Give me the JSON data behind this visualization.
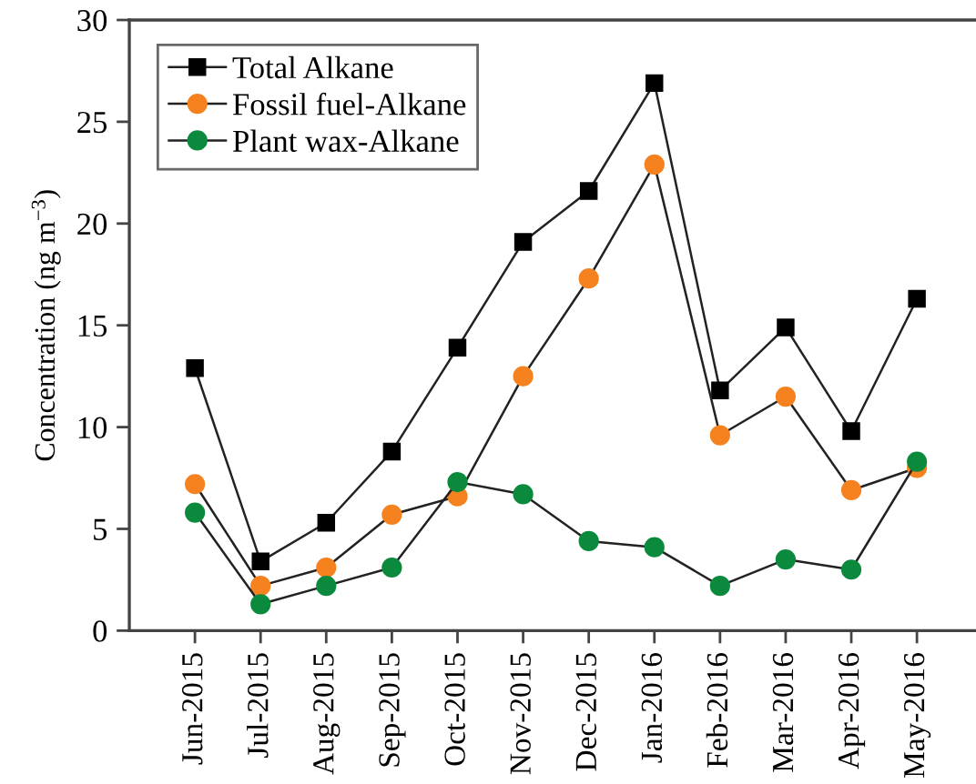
{
  "chart_data": {
    "type": "line",
    "ylabel": "Concentration (ng m$^{−3}$)",
    "categories": [
      "Jun-2015",
      "Jul-2015",
      "Aug-2015",
      "Sep-2015",
      "Oct-2015",
      "Nov-2015",
      "Dec-2015",
      "Jan-2016",
      "Feb-2016",
      "Mar-2016",
      "Apr-2016",
      "May-2016"
    ],
    "series": [
      {
        "name": "Total Alkane",
        "color": "#000000",
        "marker": "square",
        "values": [
          12.9,
          3.4,
          5.3,
          8.8,
          13.9,
          19.1,
          21.6,
          26.9,
          11.8,
          14.9,
          9.8,
          16.3
        ]
      },
      {
        "name": "Fossil fuel-Alkane",
        "color": "#f5821f",
        "marker": "circle",
        "values": [
          7.2,
          2.2,
          3.1,
          5.7,
          6.6,
          12.5,
          17.3,
          22.9,
          9.6,
          11.5,
          6.9,
          8.0
        ]
      },
      {
        "name": "Plant wax-Alkane",
        "color": "#0b8a3e",
        "marker": "circle",
        "values": [
          5.8,
          1.3,
          2.2,
          3.1,
          7.3,
          6.7,
          4.4,
          4.1,
          2.2,
          3.5,
          3.0,
          8.3
        ]
      }
    ],
    "ylim": [
      0,
      30
    ],
    "yticks": [
      0,
      5,
      10,
      15,
      20,
      25,
      30
    ],
    "grid": false,
    "legend": "top left",
    "line_style": "solid"
  }
}
